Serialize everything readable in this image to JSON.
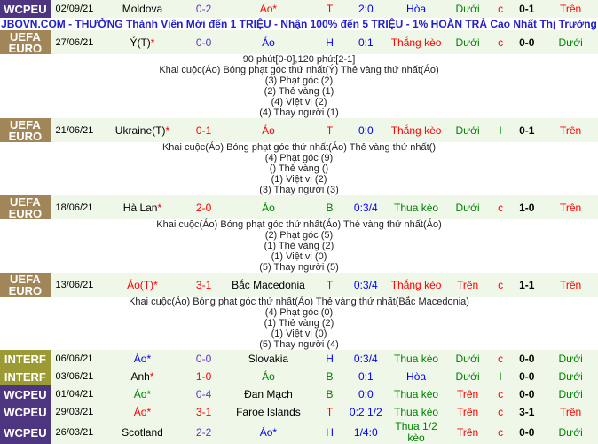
{
  "banner": "JBOVN.COM - THƯỞNG Thành Viên Mới đến 1 TRIỆU - Nhận 100% đến 5 TRIỆU - 1% HOÀN TRẢ Cao Nhất Thị Trường",
  "colors": {
    "WCPEU": "#4d357f",
    "UEFA EURO": "#a08658",
    "INTERF": "#9b9b35",
    "red": "#ff0000",
    "green": "#008000",
    "blue": "#0000ff",
    "purple": "#6633cc",
    "black": "#000000"
  },
  "rows": [
    {
      "league": "WCPEU",
      "date": "02/09/21",
      "home": "Moldova",
      "home_c": "black",
      "score": "0-2",
      "score_c": "purple",
      "away": "Áo*",
      "away_c": "red",
      "hta": "T",
      "hta_c": "red",
      "hcp": "2:0",
      "res": "Hòa",
      "res_c": "blue",
      "ou": "Dưới",
      "ou_c": "green",
      "oe": "c",
      "oe_c": "red",
      "ht": "0-1",
      "last": "Trên",
      "last_c": "red"
    },
    {
      "league": "UEFA EURO",
      "date": "27/06/21",
      "home": "Ý(T)",
      "home_star": "*",
      "home_c": "black",
      "score": "0-0",
      "score_c": "purple",
      "away": "Áo",
      "away_c": "blue",
      "hta": "H",
      "hta_c": "blue",
      "hcp": "0:1",
      "res": "Thắng kèo",
      "res_c": "red",
      "ou": "Dưới",
      "ou_c": "green",
      "oe": "c",
      "oe_c": "red",
      "ht": "0-0",
      "last": "Dưới",
      "last_c": "green",
      "details": [
        "90 phút[0-0],120 phút[2-1]",
        "Khai cuộc(Áo)  Bóng phạt góc thứ nhất(Ý)  Thẻ vàng thứ nhất(Áo)",
        "(3) Phạt góc (2)",
        "(2) Thẻ vàng (1)",
        "(4) Việt vị (2)",
        "(4) Thay người (1)"
      ]
    },
    {
      "league": "UEFA EURO",
      "date": "21/06/21",
      "home": "Ukraine(T)",
      "home_star": "*",
      "home_c": "black",
      "score": "0-1",
      "score_c": "red",
      "away": "Áo",
      "away_c": "red",
      "hta": "T",
      "hta_c": "red",
      "hcp": "0:0",
      "res": "Thắng kèo",
      "res_c": "red",
      "ou": "Dưới",
      "ou_c": "green",
      "oe": "l",
      "oe_c": "green",
      "ht": "0-1",
      "last": "Trên",
      "last_c": "red",
      "details": [
        "Khai cuộc(Áo)  Bóng phạt góc thứ nhất(Áo)  Thẻ vàng thứ nhất()",
        "(4) Phạt góc (9)",
        "() Thẻ vàng ()",
        "(1) Việt vị (2)",
        "(3) Thay người (3)"
      ]
    },
    {
      "league": "UEFA EURO",
      "date": "18/06/21",
      "home": "Hà Lan",
      "home_star": "*",
      "home_c": "black",
      "score": "2-0",
      "score_c": "red",
      "away": "Áo",
      "away_c": "green",
      "hta": "B",
      "hta_c": "green",
      "hcp": "0:3/4",
      "res": "Thua kèo",
      "res_c": "green",
      "ou": "Dưới",
      "ou_c": "green",
      "oe": "c",
      "oe_c": "red",
      "ht": "1-0",
      "last": "Trên",
      "last_c": "red",
      "details": [
        "Khai cuộc(Áo)  Bóng phạt góc thứ nhất(Áo)  Thẻ vàng thứ nhất(Áo)",
        "(2) Phạt góc (5)",
        "(1) Thẻ vàng (2)",
        "(1) Việt vị (0)",
        "(5) Thay người (5)"
      ]
    },
    {
      "league": "UEFA EURO",
      "date": "13/06/21",
      "home": "Áo(T)*",
      "home_c": "red",
      "score": "3-1",
      "score_c": "red",
      "away": "Bắc Macedonia",
      "away_c": "black",
      "hta": "T",
      "hta_c": "red",
      "hcp": "0:3/4",
      "res": "Thắng kèo",
      "res_c": "red",
      "ou": "Trên",
      "ou_c": "red",
      "oe": "c",
      "oe_c": "red",
      "ht": "1-1",
      "last": "Trên",
      "last_c": "red",
      "details": [
        "Khai cuộc(Áo)  Bóng phạt góc thứ nhất(Áo)  Thẻ vàng thứ nhất(Bắc Macedonia)",
        "(4) Phạt góc (0)",
        "(1) Thẻ vàng (2)",
        "(1) Việt vị (0)",
        "(5) Thay người (4)"
      ]
    },
    {
      "league": "INTERF",
      "date": "06/06/21",
      "home": "Áo*",
      "home_c": "blue",
      "score": "0-0",
      "score_c": "purple",
      "away": "Slovakia",
      "away_c": "black",
      "hta": "H",
      "hta_c": "blue",
      "hcp": "0:3/4",
      "res": "Thua kèo",
      "res_c": "green",
      "ou": "Dưới",
      "ou_c": "green",
      "oe": "c",
      "oe_c": "red",
      "ht": "0-0",
      "last": "Dưới",
      "last_c": "green"
    },
    {
      "league": "INTERF",
      "date": "03/06/21",
      "home": "Anh",
      "home_star": "*",
      "home_c": "black",
      "score": "1-0",
      "score_c": "red",
      "away": "Áo",
      "away_c": "green",
      "hta": "B",
      "hta_c": "green",
      "hcp": "0:1",
      "res": "Hòa",
      "res_c": "blue",
      "ou": "Dưới",
      "ou_c": "green",
      "oe": "l",
      "oe_c": "green",
      "ht": "0-0",
      "last": "Dưới",
      "last_c": "green"
    },
    {
      "league": "WCPEU",
      "date": "01/04/21",
      "home": "Áo*",
      "home_c": "green",
      "score": "0-4",
      "score_c": "purple",
      "away": "Đan Mạch",
      "away_c": "black",
      "hta": "B",
      "hta_c": "green",
      "hcp": "0:0",
      "res": "Thua kèo",
      "res_c": "green",
      "ou": "Trên",
      "ou_c": "red",
      "oe": "c",
      "oe_c": "red",
      "ht": "0-0",
      "last": "Dưới",
      "last_c": "green"
    },
    {
      "league": "WCPEU",
      "date": "29/03/21",
      "home": "Áo*",
      "home_c": "red",
      "score": "3-1",
      "score_c": "red",
      "away": "Faroe Islands",
      "away_c": "black",
      "hta": "T",
      "hta_c": "red",
      "hcp": "0:2 1/2",
      "res": "Thua kèo",
      "res_c": "green",
      "ou": "Trên",
      "ou_c": "red",
      "oe": "c",
      "oe_c": "red",
      "ht": "3-1",
      "last": "Trên",
      "last_c": "red"
    },
    {
      "league": "WCPEU",
      "date": "26/03/21",
      "home": "Scotland",
      "home_c": "black",
      "score": "2-2",
      "score_c": "purple",
      "away": "Áo*",
      "away_c": "blue",
      "hta": "H",
      "hta_c": "blue",
      "hcp": "1/4:0",
      "res": "Thua 1/2 kèo",
      "res_c": "green",
      "ou": "Trên",
      "ou_c": "red",
      "oe": "c",
      "oe_c": "red",
      "ht": "0-0",
      "last": "Dưới",
      "last_c": "green"
    }
  ]
}
